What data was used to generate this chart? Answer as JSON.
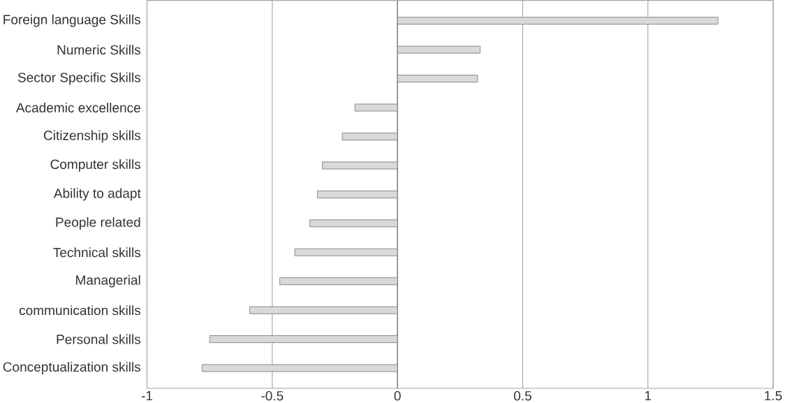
{
  "chart_data": {
    "type": "bar",
    "orientation": "horizontal",
    "categories": [
      "Foreign language Skills",
      "Numeric Skills",
      "Sector Specific Skills",
      "Academic excellence",
      "Citizenship skills",
      "Computer skills",
      "Ability to adapt",
      "People related",
      "Technical skills",
      "Managerial",
      "communication skills",
      "Personal skills",
      "Conceptualization skills"
    ],
    "values": [
      1.28,
      0.33,
      0.32,
      -0.17,
      -0.22,
      -0.3,
      -0.32,
      -0.35,
      -0.41,
      -0.47,
      -0.59,
      -0.75,
      -0.78
    ],
    "color": "#d9d9d9",
    "xlim": [
      -1,
      1.5
    ],
    "xticks": [
      -1,
      -0.5,
      0,
      0.5,
      1,
      1.5
    ],
    "grid": "x"
  }
}
